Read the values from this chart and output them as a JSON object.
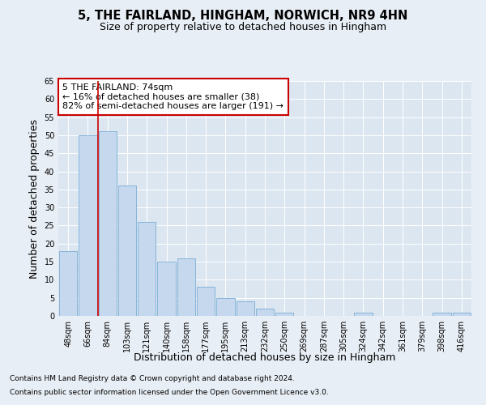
{
  "title": "5, THE FAIRLAND, HINGHAM, NORWICH, NR9 4HN",
  "subtitle": "Size of property relative to detached houses in Hingham",
  "xlabel": "Distribution of detached houses by size in Hingham",
  "ylabel": "Number of detached properties",
  "categories": [
    "48sqm",
    "66sqm",
    "84sqm",
    "103sqm",
    "121sqm",
    "140sqm",
    "158sqm",
    "177sqm",
    "195sqm",
    "213sqm",
    "232sqm",
    "250sqm",
    "269sqm",
    "287sqm",
    "305sqm",
    "324sqm",
    "342sqm",
    "361sqm",
    "379sqm",
    "398sqm",
    "416sqm"
  ],
  "values": [
    18,
    50,
    51,
    36,
    26,
    15,
    16,
    8,
    5,
    4,
    2,
    1,
    0,
    0,
    0,
    1,
    0,
    0,
    0,
    1,
    1
  ],
  "bar_color": "#c5d8ed",
  "bar_edge_color": "#7badd4",
  "vline_color": "#cc0000",
  "annotation_text": "5 THE FAIRLAND: 74sqm\n← 16% of detached houses are smaller (38)\n82% of semi-detached houses are larger (191) →",
  "annotation_box_color": "#ffffff",
  "annotation_box_edge": "#cc0000",
  "ylim": [
    0,
    65
  ],
  "yticks": [
    0,
    5,
    10,
    15,
    20,
    25,
    30,
    35,
    40,
    45,
    50,
    55,
    60,
    65
  ],
  "footer1": "Contains HM Land Registry data © Crown copyright and database right 2024.",
  "footer2": "Contains public sector information licensed under the Open Government Licence v3.0.",
  "bg_color": "#e8eef5",
  "plot_bg_color": "#dce6f1",
  "title_fontsize": 10.5,
  "subtitle_fontsize": 9,
  "tick_fontsize": 7,
  "label_fontsize": 9,
  "annotation_fontsize": 8,
  "footer_fontsize": 6.5
}
